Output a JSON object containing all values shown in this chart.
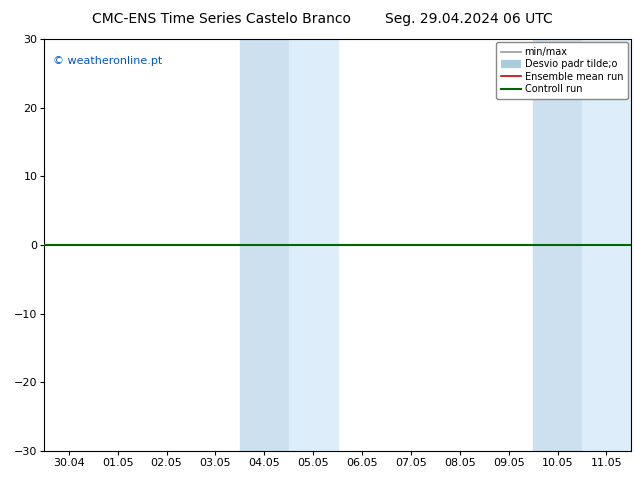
{
  "title_left": "CMC-ENS Time Series Castelo Branco",
  "title_right": "Seg. 29.04.2024 06 UTC",
  "watermark": "© weatheronline.pt",
  "ylim": [
    -30,
    30
  ],
  "yticks": [
    -30,
    -20,
    -10,
    0,
    10,
    20,
    30
  ],
  "xtick_labels": [
    "30.04",
    "01.05",
    "02.05",
    "03.05",
    "04.05",
    "05.05",
    "06.05",
    "07.05",
    "08.05",
    "09.05",
    "10.05",
    "11.05"
  ],
  "xtick_positions": [
    0,
    1,
    2,
    3,
    4,
    5,
    6,
    7,
    8,
    9,
    10,
    11
  ],
  "blue_bands": [
    [
      3.5,
      4.5
    ],
    [
      4.5,
      5.5
    ],
    [
      9.5,
      10.5
    ],
    [
      10.5,
      11.5
    ]
  ],
  "blue_band_colors": [
    "#d8eaf8",
    "#e8f4ff",
    "#d8eaf8",
    "#e8f4ff"
  ],
  "green_line_color": "#006600",
  "green_line_y": 0,
  "background_color": "#ffffff",
  "plot_bg_color": "#ffffff",
  "legend_gray_line": "#999999",
  "legend_gray_fill": "#ccddee",
  "legend_red": "#cc0000",
  "legend_green": "#006600",
  "title_fontsize": 10,
  "tick_fontsize": 8,
  "watermark_color": "#0055cc",
  "border_color": "#000000",
  "legend_label_1": "min/max",
  "legend_label_2": "Desvio padr tilde;o",
  "legend_label_3": "Ensemble mean run",
  "legend_label_4": "Controll run"
}
